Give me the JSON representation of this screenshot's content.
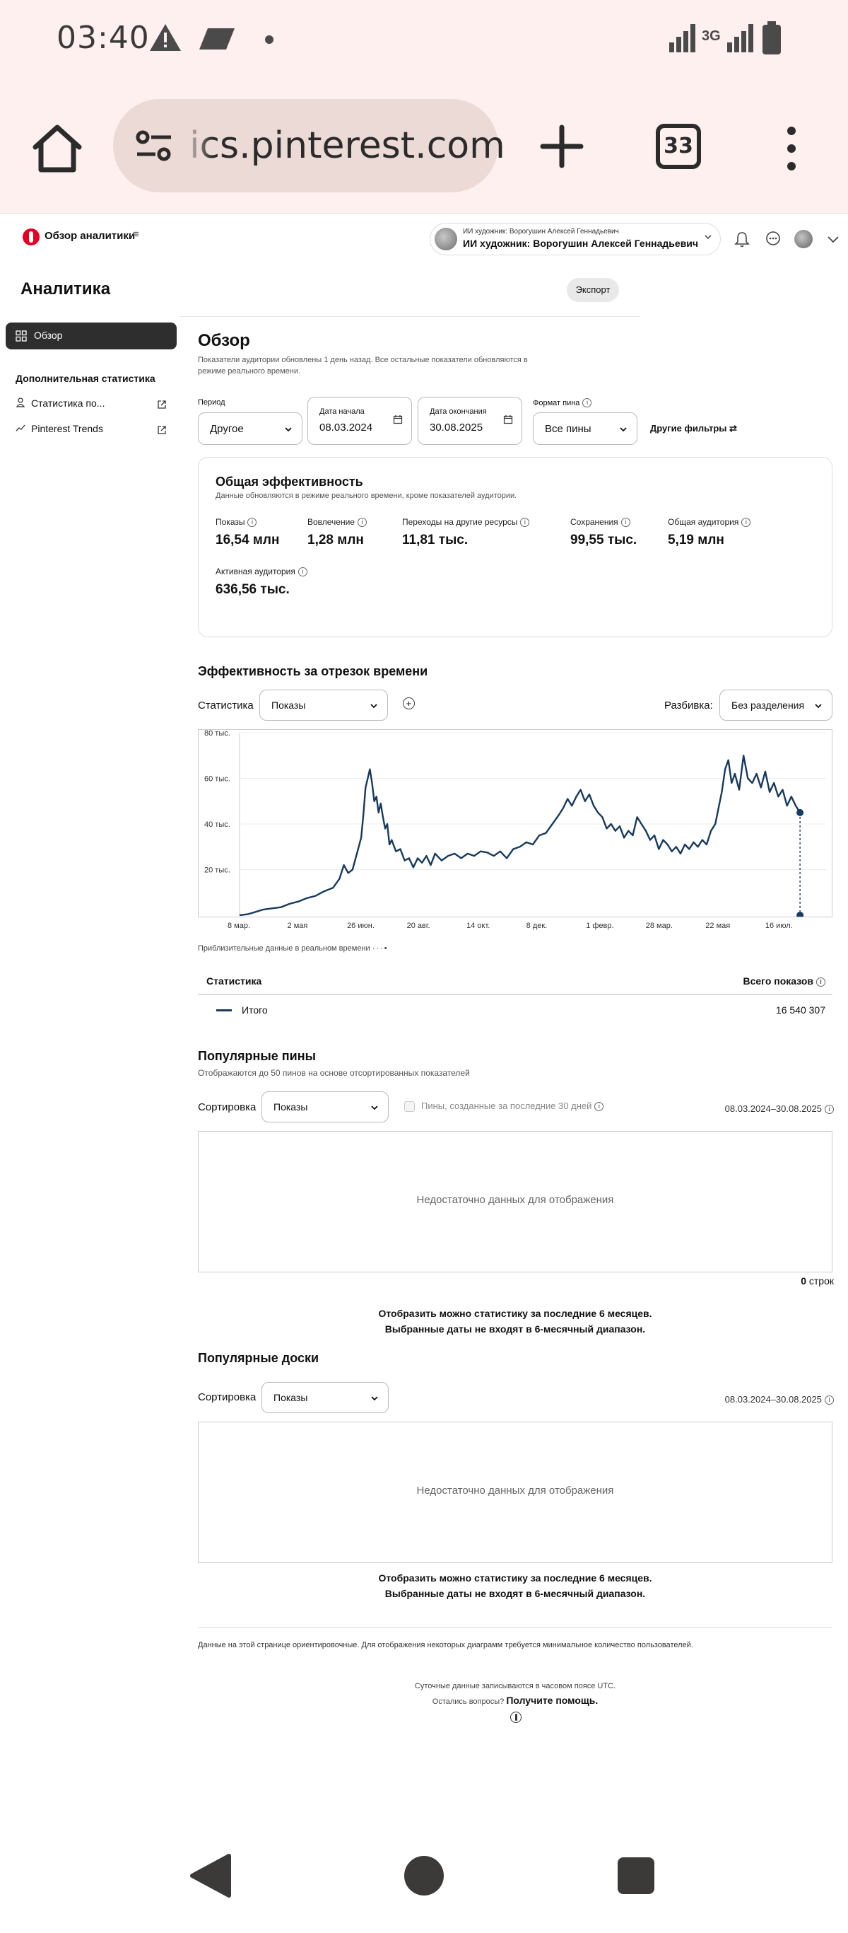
{
  "status_bar": {
    "time": "03:40",
    "network": "3G"
  },
  "browser": {
    "url": "ics.pinterest.com",
    "tab_count": "33"
  },
  "header": {
    "app_title": "Обзор аналитики",
    "account_sub": "ИИ художник: Ворогушин Алексей Геннадьевич",
    "account_main": "ИИ художник: Ворогушин Алексей Геннадьевич"
  },
  "page": {
    "title": "Аналитика",
    "export": "Экспорт"
  },
  "sidebar": {
    "active": "Обзор",
    "section": "Дополнительная статистика",
    "items": [
      {
        "label": "Статистика по..."
      },
      {
        "label": "Pinterest Trends"
      }
    ]
  },
  "overview": {
    "title": "Обзор",
    "subtitle": "Показатели аудитории обновлены 1 день назад. Все остальные показатели обновляются в режиме реального времени."
  },
  "filters": {
    "period_label": "Период",
    "period_value": "Другое",
    "start_label": "Дата начала",
    "start_value": "08.03.2024",
    "end_label": "Дата окончания",
    "end_value": "30.08.2025",
    "format_label": "Формат пина",
    "format_value": "Все пины",
    "other": "Другие фильтры"
  },
  "performance": {
    "title": "Общая эффективность",
    "subtitle": "Данные обновляются в режиме реального времени, кроме показателей аудитории.",
    "metrics": [
      {
        "label": "Показы",
        "value": "16,54 млн"
      },
      {
        "label": "Вовлечение",
        "value": "1,28 млн"
      },
      {
        "label": "Переходы на другие ресурсы",
        "value": "11,81 тыс."
      },
      {
        "label": "Сохранения",
        "value": "99,55 тыс."
      },
      {
        "label": "Общая аудитория",
        "value": "5,19 млн"
      },
      {
        "label": "Активная аудитория",
        "value": "636,56 тыс."
      }
    ]
  },
  "timeline": {
    "title": "Эффективность за отрезок времени",
    "stat_label": "Статистика",
    "stat_value": "Показы",
    "split_label": "Разбивка:",
    "split_value": "Без разделения",
    "approx": "Приблизительные данные в реальном времени",
    "table_head_left": "Статистика",
    "table_head_right": "Всего показов",
    "row_label": "Итого",
    "row_value": "16 540 307"
  },
  "chart_data": {
    "type": "line",
    "title": "",
    "xlabel": "",
    "ylabel": "",
    "ylim": [
      0,
      80000
    ],
    "y_ticks": [
      "20 тыс.",
      "40 тыс.",
      "60 тыс.",
      "80 тыс."
    ],
    "y_tick_values": [
      20000,
      40000,
      60000,
      80000
    ],
    "x_ticks": [
      "8 мар.",
      "2 мая",
      "26 июн.",
      "20 авг.",
      "14 окт.",
      "8 дек.",
      "1 февр.",
      "28 мар.",
      "22 мая",
      "16 июл."
    ],
    "x_tick_days": [
      0,
      55,
      110,
      165,
      220,
      275,
      330,
      385,
      440,
      495
    ],
    "x_range_days": [
      0,
      540
    ],
    "series": [
      {
        "color": "#173a5e",
        "points": [
          [
            0,
            0
          ],
          [
            8,
            500
          ],
          [
            15,
            1500
          ],
          [
            22,
            2500
          ],
          [
            30,
            3000
          ],
          [
            38,
            3500
          ],
          [
            46,
            5000
          ],
          [
            54,
            6000
          ],
          [
            62,
            7500
          ],
          [
            70,
            8500
          ],
          [
            78,
            10500
          ],
          [
            86,
            12000
          ],
          [
            92,
            16000
          ],
          [
            96,
            22000
          ],
          [
            100,
            18500
          ],
          [
            104,
            20000
          ],
          [
            108,
            27000
          ],
          [
            112,
            34000
          ],
          [
            114,
            44000
          ],
          [
            116,
            56000
          ],
          [
            118,
            60000
          ],
          [
            120,
            64000
          ],
          [
            122,
            58000
          ],
          [
            124,
            50000
          ],
          [
            126,
            52000
          ],
          [
            128,
            45000
          ],
          [
            130,
            49000
          ],
          [
            132,
            43000
          ],
          [
            134,
            38000
          ],
          [
            136,
            40000
          ],
          [
            138,
            31000
          ],
          [
            140,
            33000
          ],
          [
            144,
            28000
          ],
          [
            148,
            29000
          ],
          [
            152,
            24000
          ],
          [
            156,
            25000
          ],
          [
            160,
            21000
          ],
          [
            164,
            25000
          ],
          [
            168,
            23000
          ],
          [
            172,
            26000
          ],
          [
            176,
            22000
          ],
          [
            180,
            27000
          ],
          [
            186,
            24000
          ],
          [
            192,
            26000
          ],
          [
            198,
            27000
          ],
          [
            204,
            25000
          ],
          [
            210,
            27000
          ],
          [
            216,
            26000
          ],
          [
            222,
            28000
          ],
          [
            228,
            27500
          ],
          [
            234,
            26000
          ],
          [
            240,
            28000
          ],
          [
            246,
            25000
          ],
          [
            252,
            29000
          ],
          [
            258,
            30000
          ],
          [
            264,
            32000
          ],
          [
            270,
            31000
          ],
          [
            276,
            35000
          ],
          [
            282,
            36000
          ],
          [
            288,
            40000
          ],
          [
            294,
            44000
          ],
          [
            298,
            47000
          ],
          [
            302,
            51000
          ],
          [
            306,
            48000
          ],
          [
            310,
            52000
          ],
          [
            314,
            55000
          ],
          [
            318,
            50000
          ],
          [
            322,
            53000
          ],
          [
            326,
            48000
          ],
          [
            330,
            45000
          ],
          [
            334,
            43000
          ],
          [
            338,
            38000
          ],
          [
            342,
            40000
          ],
          [
            346,
            37000
          ],
          [
            350,
            39000
          ],
          [
            354,
            34000
          ],
          [
            358,
            37000
          ],
          [
            362,
            35000
          ],
          [
            366,
            43000
          ],
          [
            370,
            40000
          ],
          [
            374,
            37000
          ],
          [
            378,
            33000
          ],
          [
            382,
            35000
          ],
          [
            386,
            29000
          ],
          [
            390,
            33000
          ],
          [
            394,
            31000
          ],
          [
            398,
            28000
          ],
          [
            402,
            30000
          ],
          [
            406,
            27000
          ],
          [
            410,
            31000
          ],
          [
            414,
            29000
          ],
          [
            418,
            32000
          ],
          [
            422,
            30000
          ],
          [
            426,
            33000
          ],
          [
            430,
            31000
          ],
          [
            434,
            37000
          ],
          [
            438,
            40000
          ],
          [
            441,
            47000
          ],
          [
            444,
            54000
          ],
          [
            447,
            64000
          ],
          [
            450,
            68000
          ],
          [
            453,
            58000
          ],
          [
            456,
            62000
          ],
          [
            460,
            55000
          ],
          [
            464,
            70000
          ],
          [
            468,
            60000
          ],
          [
            472,
            58000
          ],
          [
            476,
            62000
          ],
          [
            480,
            56000
          ],
          [
            484,
            63000
          ],
          [
            488,
            54000
          ],
          [
            492,
            58000
          ],
          [
            496,
            52000
          ],
          [
            500,
            55000
          ],
          [
            504,
            48000
          ],
          [
            508,
            52000
          ],
          [
            512,
            48000
          ],
          [
            516,
            45000
          ]
        ],
        "end_marker": [
          516,
          45000
        ],
        "drop_marker": [
          516,
          0
        ]
      }
    ],
    "grid": true,
    "legend": "none"
  },
  "popular_pins": {
    "title": "Популярные пины",
    "subtitle": "Отображаются до 50 пинов на основе отсортированных показателей",
    "sort_label": "Сортировка",
    "sort_value": "Показы",
    "checkbox_label": "Пины, созданные за последние 30 дней",
    "date_range": "08.03.2024–30.08.2025",
    "empty": "Недостаточно данных для отображения",
    "rows_num": "0",
    "rows_word": "строк",
    "note_1": "Отобразить можно статистику за последние 6 месяцев.",
    "note_2": "Выбранные даты не входят в 6-месячный диапазон."
  },
  "popular_boards": {
    "title": "Популярные доски",
    "sort_label": "Сортировка",
    "sort_value": "Показы",
    "date_range": "08.03.2024–30.08.2025",
    "empty": "Недостаточно данных для отображения",
    "note_1": "Отобразить можно статистику за последние 6 месяцев.",
    "note_2": "Выбранные даты не входят в 6-месячный диапазон."
  },
  "footer": {
    "note": "Данные на этой странице ориентировочные. Для отображения некоторых диаграмм требуется минимальное количество пользователей.",
    "utc": "Суточные данные записываются в часовом поясе UTC.",
    "question": "Остались вопросы?",
    "help": "Получите помощь."
  }
}
